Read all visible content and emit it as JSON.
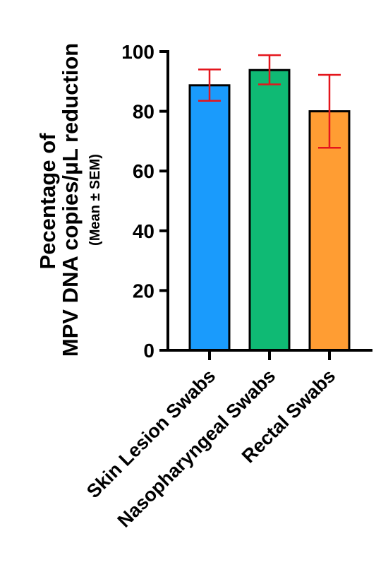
{
  "chart_data": {
    "type": "bar",
    "categories": [
      "Skin Lesion Swabs",
      "Nasopharyngeal Swabs",
      "Rectal Swabs"
    ],
    "values": [
      88.7,
      93.8,
      80.0
    ],
    "error_low": [
      83.5,
      89.0,
      67.8
    ],
    "error_high": [
      94.0,
      98.8,
      92.2
    ],
    "colors": [
      "#1a9bfc",
      "#0fba74",
      "#ff9d33"
    ],
    "error_color": "#e4151c",
    "ylabel_line1": "Pecentage of",
    "ylabel_line2": "MPV DNA copies/μL reduction",
    "ylabel_line3": "(Mean ± SEM)",
    "yticks": [
      "0",
      "20",
      "40",
      "60",
      "80",
      "100"
    ],
    "ylim": [
      0,
      100
    ],
    "grid": false,
    "legend": "none"
  }
}
